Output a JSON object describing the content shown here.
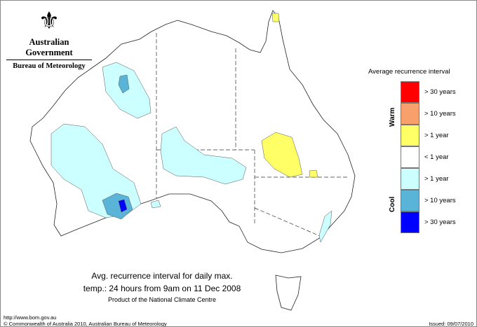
{
  "header": {
    "gov": "Australian Government",
    "bureau": "Bureau of Meteorology",
    "crest_icon": "coat-of-arms-icon"
  },
  "legend": {
    "title": "Average recurrence interval",
    "warm_label": "Warm",
    "cool_label": "Cool",
    "items": [
      {
        "label": "> 30 years",
        "color": "#ff0000"
      },
      {
        "label": "> 10 years",
        "color": "#f7a06c"
      },
      {
        "label": "> 1 year",
        "color": "#ffff66"
      },
      {
        "label": "< 1 year",
        "color": "#ffffff"
      },
      {
        "label": "> 1 year",
        "color": "#ccffff"
      },
      {
        "label": "> 10 years",
        "color": "#5ab4d8"
      },
      {
        "label": "> 30 years",
        "color": "#0000ff"
      }
    ]
  },
  "caption": {
    "line1": "Avg. recurrence interval for daily max.",
    "line2": "temp.: 24 hours from 9am on 11 Dec 2008",
    "line3": "Product of the National Climate Centre"
  },
  "footer": {
    "url": "http://www.bom.gov.au",
    "copyright": "© Commonwealth of Australia 2010, Australian Bureau of Meteorology",
    "issued": "Issued: 09/07/2010"
  }
}
